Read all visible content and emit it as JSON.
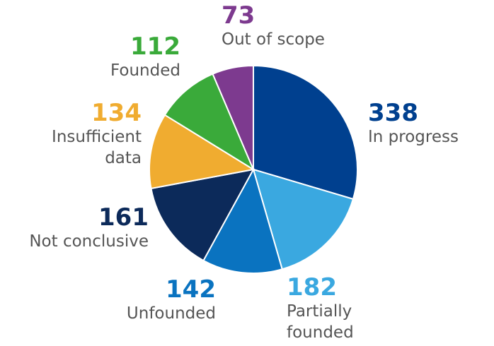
{
  "chart_data": {
    "type": "pie",
    "categories": [
      "In progress",
      "Partially founded",
      "Unfounded",
      "Not conclusive",
      "Insufficient data",
      "Founded",
      "Out of scope"
    ],
    "values": [
      338,
      182,
      142,
      161,
      134,
      112,
      73
    ],
    "colors": [
      "#00408f",
      "#3aa8e0",
      "#0a73c0",
      "#0c2a5a",
      "#f0ac30",
      "#3aaa3a",
      "#7d3a8f"
    ]
  }
}
